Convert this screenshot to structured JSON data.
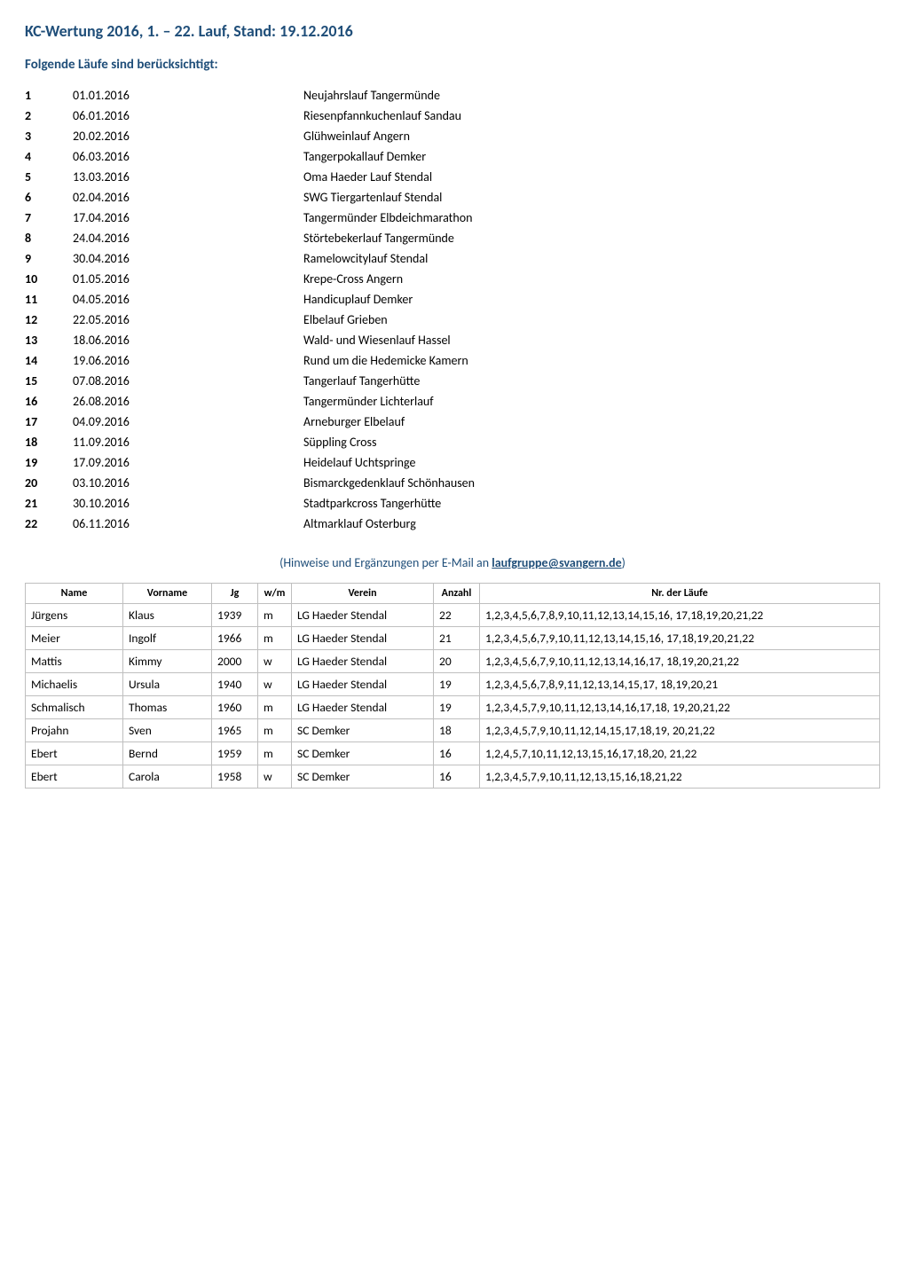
{
  "title": "KC-Wertung 2016, 1. – 22. Lauf, Stand: 19.12.2016",
  "subtitle": "Folgende Läufe sind berücksichtigt:",
  "runs": [
    {
      "num": "1",
      "date": "01.01.2016",
      "name": "Neujahrslauf Tangermünde"
    },
    {
      "num": "2",
      "date": "06.01.2016",
      "name": "Riesenpfannkuchenlauf Sandau"
    },
    {
      "num": "3",
      "date": "20.02.2016",
      "name": "Glühweinlauf Angern"
    },
    {
      "num": "4",
      "date": "06.03.2016",
      "name": "Tangerpokallauf Demker"
    },
    {
      "num": "5",
      "date": "13.03.2016",
      "name": "Oma Haeder Lauf Stendal"
    },
    {
      "num": "6",
      "date": "02.04.2016",
      "name": "SWG Tiergartenlauf Stendal"
    },
    {
      "num": "7",
      "date": "17.04.2016",
      "name": "Tangermünder Elbdeichmarathon"
    },
    {
      "num": "8",
      "date": "24.04.2016",
      "name": "Störtebekerlauf Tangermünde"
    },
    {
      "num": "9",
      "date": "30.04.2016",
      "name": "Ramelowcitylauf Stendal"
    },
    {
      "num": "10",
      "date": "01.05.2016",
      "name": "Krepe-Cross Angern"
    },
    {
      "num": "11",
      "date": "04.05.2016",
      "name": "Handicuplauf Demker"
    },
    {
      "num": "12",
      "date": "22.05.2016",
      "name": "Elbelauf Grieben"
    },
    {
      "num": "13",
      "date": "18.06.2016",
      "name": "Wald- und Wiesenlauf Hassel"
    },
    {
      "num": "14",
      "date": "19.06.2016",
      "name": "Rund um die Hedemicke Kamern"
    },
    {
      "num": "15",
      "date": "07.08.2016",
      "name": "Tangerlauf Tangerhütte"
    },
    {
      "num": "16",
      "date": "26.08.2016",
      "name": "Tangermünder Lichterlauf"
    },
    {
      "num": "17",
      "date": "04.09.2016",
      "name": "Arneburger Elbelauf"
    },
    {
      "num": "18",
      "date": "11.09.2016",
      "name": "Süppling Cross"
    },
    {
      "num": "19",
      "date": "17.09.2016",
      "name": "Heidelauf Uchtspringe"
    },
    {
      "num": "20",
      "date": "03.10.2016",
      "name": "Bismarckgedenklauf Schönhausen"
    },
    {
      "num": "21",
      "date": "30.10.2016",
      "name": "Stadtparkcross Tangerhütte"
    },
    {
      "num": "22",
      "date": "06.11.2016",
      "name": "Altmarklauf Osterburg"
    }
  ],
  "hint": {
    "prefix": "(Hinweise und Ergänzungen per E-Mail an ",
    "link": "laufgruppe@svangern.de",
    "suffix": ")"
  },
  "results": {
    "columns": [
      "Name",
      "Vorname",
      "Jg",
      "w/m",
      "Verein",
      "Anzahl",
      "Nr. der Läufe"
    ],
    "rows": [
      {
        "name": "Jürgens",
        "vor": "Klaus",
        "jg": "1939",
        "wm": "m",
        "verein": "LG Haeder Stendal",
        "anz": "22",
        "nr": "1,2,3,4,5,6,7,8,9,10,11,12,13,14,15,16, 17,18,19,20,21,22"
      },
      {
        "name": "Meier",
        "vor": "Ingolf",
        "jg": "1966",
        "wm": "m",
        "verein": "LG Haeder Stendal",
        "anz": "21",
        "nr": "1,2,3,4,5,6,7,9,10,11,12,13,14,15,16, 17,18,19,20,21,22"
      },
      {
        "name": "Mattis",
        "vor": "Kimmy",
        "jg": "2000",
        "wm": "w",
        "verein": "LG Haeder Stendal",
        "anz": "20",
        "nr": "1,2,3,4,5,6,7,9,10,11,12,13,14,16,17, 18,19,20,21,22"
      },
      {
        "name": "Michaelis",
        "vor": "Ursula",
        "jg": "1940",
        "wm": "w",
        "verein": "LG Haeder Stendal",
        "anz": "19",
        "nr": "1,2,3,4,5,6,7,8,9,11,12,13,14,15,17, 18,19,20,21"
      },
      {
        "name": "Schmalisch",
        "vor": "Thomas",
        "jg": "1960",
        "wm": "m",
        "verein": "LG Haeder Stendal",
        "anz": "19",
        "nr": "1,2,3,4,5,7,9,10,11,12,13,14,16,17,18, 19,20,21,22"
      },
      {
        "name": "Projahn",
        "vor": "Sven",
        "jg": "1965",
        "wm": "m",
        "verein": "SC Demker",
        "anz": "18",
        "nr": "1,2,3,4,5,7,9,10,11,12,14,15,17,18,19, 20,21,22"
      },
      {
        "name": "Ebert",
        "vor": "Bernd",
        "jg": "1959",
        "wm": "m",
        "verein": "SC Demker",
        "anz": "16",
        "nr": "1,2,4,5,7,10,11,12,13,15,16,17,18,20, 21,22"
      },
      {
        "name": "Ebert",
        "vor": "Carola",
        "jg": "1958",
        "wm": "w",
        "verein": "SC Demker",
        "anz": "16",
        "nr": "1,2,3,4,5,7,9,10,11,12,13,15,16,18,21,22"
      }
    ]
  }
}
